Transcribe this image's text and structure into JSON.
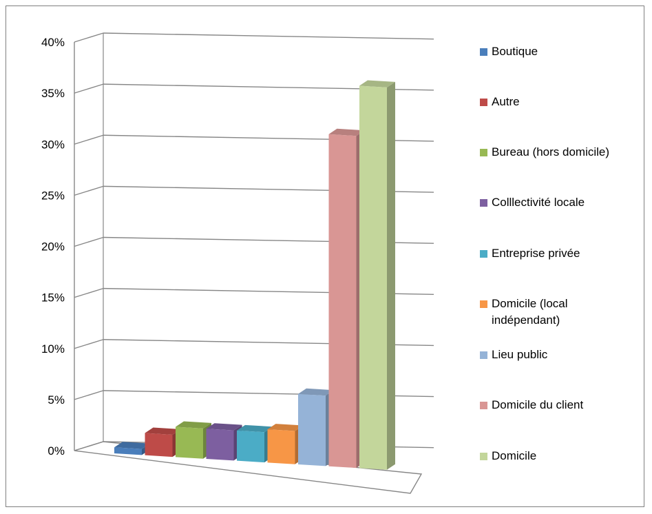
{
  "chart_data": {
    "type": "bar",
    "style": "3d-clustered-column",
    "title": "",
    "xlabel": "",
    "ylabel": "",
    "ylim": [
      0,
      40
    ],
    "yticks": [
      "0%",
      "5%",
      "10%",
      "15%",
      "20%",
      "25%",
      "30%",
      "35%",
      "40%"
    ],
    "grid": true,
    "legend_position": "right",
    "categories": [
      "Boutique",
      "Autre",
      "Bureau (hors domicile)",
      "Colllectivité locale",
      "Entreprise privée",
      "Domicile (local indépendant)",
      "Lieu public",
      "Domicile du client",
      "Domicile"
    ],
    "values": [
      0.6,
      2.2,
      3.0,
      3.0,
      3.0,
      3.3,
      7.0,
      33.0,
      38.0
    ],
    "value_unit": "%",
    "colors": [
      "#4a7ebb",
      "#be4b48",
      "#98b954",
      "#7d5fa0",
      "#4bacc6",
      "#f79646",
      "#95b3d7",
      "#d99694",
      "#c3d69b"
    ],
    "legend": [
      {
        "label": "Boutique"
      },
      {
        "label": "Autre"
      },
      {
        "label": "Bureau (hors domicile)"
      },
      {
        "label": "Colllectivité locale"
      },
      {
        "label": "Entreprise privée"
      },
      {
        "label": "Domicile (local\nindépendant)"
      },
      {
        "label": "Lieu public"
      },
      {
        "label": "Domicile du client"
      },
      {
        "label": "Domicile"
      }
    ]
  }
}
